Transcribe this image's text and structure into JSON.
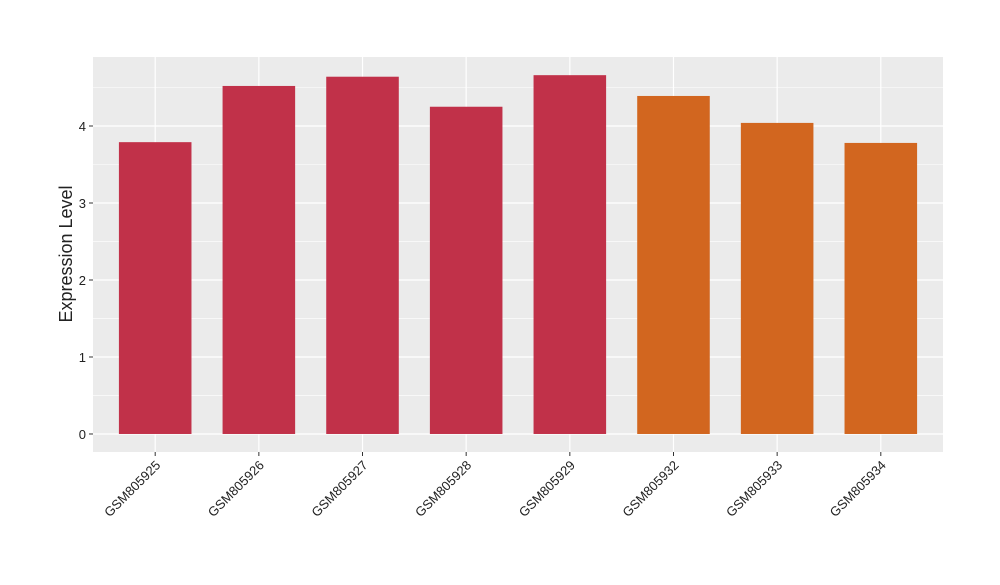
{
  "chart_data": {
    "type": "bar",
    "y_label": "Expression Level",
    "categories": [
      "GSM805925",
      "GSM805926",
      "GSM805927",
      "GSM805928",
      "GSM805929",
      "GSM805932",
      "GSM805933",
      "GSM805934"
    ],
    "values": [
      3.79,
      4.52,
      4.64,
      4.25,
      4.66,
      4.39,
      4.04,
      3.78
    ],
    "colors": [
      "#c13149",
      "#c13149",
      "#c13149",
      "#c13149",
      "#c13149",
      "#d2661f",
      "#d2661f",
      "#d2661f"
    ],
    "ylim": [
      -0.234,
      4.896
    ],
    "yticks": [
      0,
      1,
      2,
      3,
      4
    ],
    "grid": true
  }
}
